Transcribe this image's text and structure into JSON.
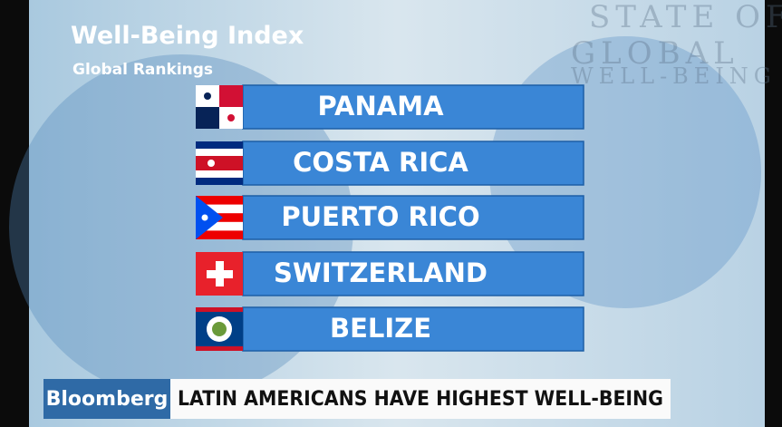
{
  "header": {
    "title": "Well-Being Index",
    "subtitle": "Global Rankings"
  },
  "watermark": {
    "lines": [
      "STATE OF",
      "GLOBAL",
      "WELL-BEING"
    ]
  },
  "rankings": [
    "PANAMA",
    "COSTA RICA",
    "PUERTO RICO",
    "SWITZERLAND",
    "BELIZE"
  ],
  "ticker": {
    "brand": "Bloomberg",
    "headline": "LATIN AMERICANS HAVE HIGHEST WELL-BEING"
  }
}
